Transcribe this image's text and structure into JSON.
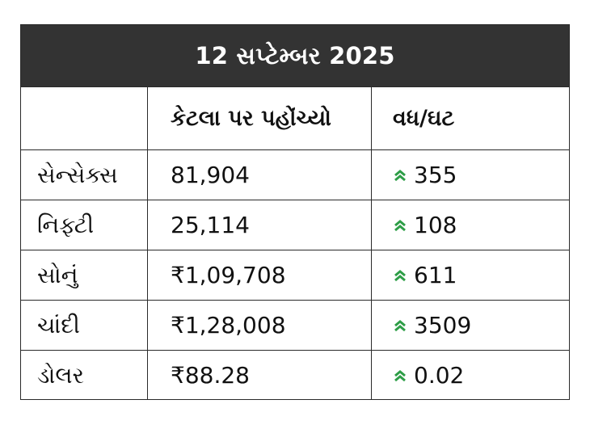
{
  "title": "12 સપ્ટેમ્બર 2025",
  "headers": {
    "col1": "",
    "col2": "કેટલા પર પહોંચ્યો",
    "col3": "વધ/ઘટ"
  },
  "rows": [
    {
      "name": "સેન્સેક્સ",
      "value": "81,904",
      "change": "355",
      "direction": "up"
    },
    {
      "name": "નિફ્ટી",
      "value": "25,114",
      "change": "108",
      "direction": "up"
    },
    {
      "name": "સોનું",
      "value": "₹1,09,708",
      "change": "611",
      "direction": "up"
    },
    {
      "name": "ચાંદી",
      "value": "₹1,28,008",
      "change": "3509",
      "direction": "up"
    },
    {
      "name": "ડોલર",
      "value": "₹88.28",
      "change": "0.02",
      "direction": "up"
    }
  ],
  "colors": {
    "title_bg": "#333333",
    "up_arrow": "#2e9e47"
  },
  "icons": {
    "up": "double-chevron-up-icon"
  }
}
